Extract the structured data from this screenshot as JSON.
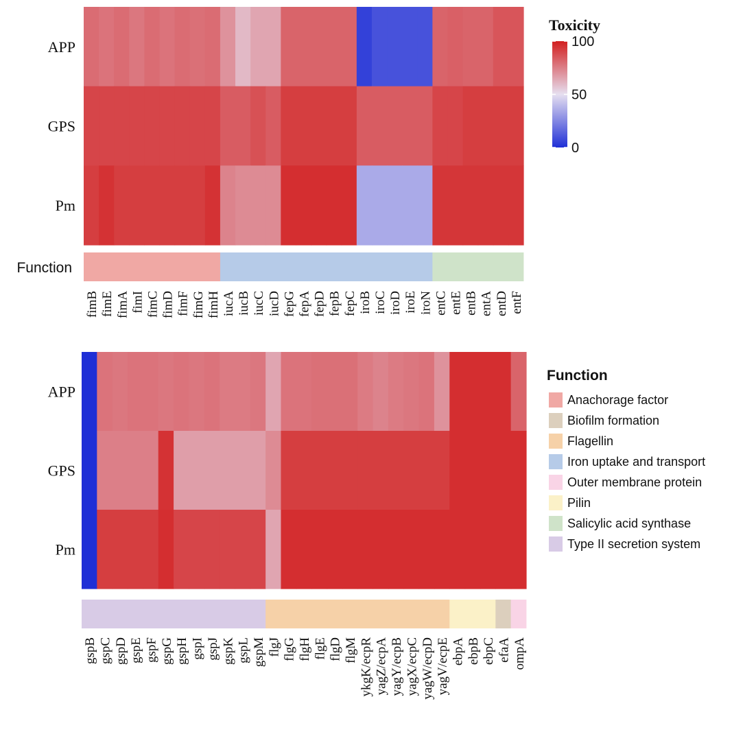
{
  "chart_data": [
    {
      "type": "heatmap",
      "name": "top-panel",
      "rows": [
        "APP",
        "GPS",
        "Pm"
      ],
      "columns": [
        "fimB",
        "fimE",
        "fimA",
        "fimI",
        "fimC",
        "fimD",
        "fimF",
        "fimG",
        "fimH",
        "iucA",
        "iucB",
        "iucC",
        "iucD",
        "fepG",
        "fepA",
        "fepD",
        "fepB",
        "fepC",
        "iroB",
        "iroC",
        "iroD",
        "iroE",
        "iroN",
        "entC",
        "entE",
        "entB",
        "entA",
        "entD",
        "entF"
      ],
      "values": [
        [
          80,
          78,
          80,
          77,
          80,
          78,
          80,
          79,
          80,
          70,
          60,
          65,
          65,
          82,
          82,
          82,
          82,
          82,
          5,
          10,
          10,
          10,
          10,
          82,
          83,
          82,
          82,
          86,
          86
        ],
        [
          90,
          90,
          90,
          90,
          90,
          90,
          90,
          90,
          90,
          84,
          84,
          87,
          84,
          92,
          92,
          92,
          92,
          92,
          84,
          84,
          84,
          84,
          84,
          90,
          90,
          92,
          92,
          92,
          92
        ],
        [
          92,
          95,
          92,
          92,
          92,
          92,
          92,
          92,
          95,
          74,
          72,
          72,
          72,
          96,
          96,
          96,
          96,
          96,
          35,
          35,
          35,
          35,
          35,
          94,
          94,
          94,
          94,
          94,
          94
        ]
      ],
      "row_group_label": "Function",
      "functions": [
        "Anachorage factor",
        "Anachorage factor",
        "Anachorage factor",
        "Anachorage factor",
        "Anachorage factor",
        "Anachorage factor",
        "Anachorage factor",
        "Anachorage factor",
        "Anachorage factor",
        "Iron uptake and transport",
        "Iron uptake and transport",
        "Iron uptake and transport",
        "Iron uptake and transport",
        "Iron uptake and transport",
        "Iron uptake and transport",
        "Iron uptake and transport",
        "Iron uptake and transport",
        "Iron uptake and transport",
        "Iron uptake and transport",
        "Iron uptake and transport",
        "Iron uptake and transport",
        "Iron uptake and transport",
        "Iron uptake and transport",
        "Salicylic acid synthase",
        "Salicylic acid synthase",
        "Salicylic acid synthase",
        "Salicylic acid synthase",
        "Salicylic acid synthase",
        "Salicylic acid synthase"
      ]
    },
    {
      "type": "heatmap",
      "name": "bottom-panel",
      "rows": [
        "APP",
        "GPS",
        "Pm"
      ],
      "columns": [
        "gspB",
        "gspC",
        "gspD",
        "gspE",
        "gspF",
        "gspG",
        "gspH",
        "gspI",
        "gspJ",
        "gspK",
        "gspL",
        "gspM",
        "flgJ",
        "flgG",
        "flgH",
        "flgE",
        "flgD",
        "flgM",
        "ykgK/ecpR",
        "yagZ/ecpA",
        "yagY/ecpB",
        "yagX/ecpC",
        "yagW/ecpD",
        "yagV/ecpE",
        "ebpA",
        "ebpB",
        "ebpC",
        "efaA",
        "ompA"
      ],
      "values": [
        [
          0,
          78,
          77,
          78,
          78,
          77,
          78,
          77,
          78,
          76,
          76,
          77,
          65,
          78,
          78,
          79,
          79,
          79,
          76,
          74,
          76,
          77,
          78,
          70,
          96,
          96,
          96,
          96,
          82
        ],
        [
          0,
          75,
          75,
          75,
          75,
          95,
          67,
          67,
          67,
          67,
          67,
          67,
          72,
          92,
          92,
          92,
          92,
          92,
          92,
          92,
          92,
          92,
          92,
          92,
          96,
          96,
          96,
          96,
          96
        ],
        [
          0,
          92,
          92,
          92,
          92,
          96,
          90,
          90,
          90,
          90,
          90,
          90,
          65,
          96,
          96,
          96,
          96,
          96,
          96,
          96,
          96,
          96,
          96,
          96,
          96,
          96,
          96,
          96,
          96
        ]
      ],
      "functions": [
        "Type II secretion system",
        "Type II secretion system",
        "Type II secretion system",
        "Type II secretion system",
        "Type II secretion system",
        "Type II secretion system",
        "Type II secretion system",
        "Type II secretion system",
        "Type II secretion system",
        "Type II secretion system",
        "Type II secretion system",
        "Type II secretion system",
        "Flagellin",
        "Flagellin",
        "Flagellin",
        "Flagellin",
        "Flagellin",
        "Flagellin",
        "Flagellin",
        "Flagellin",
        "Flagellin",
        "Flagellin",
        "Flagellin",
        "Flagellin",
        "Pilin",
        "Pilin",
        "Pilin",
        "Biofilm formation",
        "Outer membrane protein"
      ]
    }
  ],
  "color_legend": {
    "title": "Toxicity",
    "ticks": [
      100,
      50,
      0
    ],
    "range": [
      0,
      100
    ],
    "colors": {
      "low": "#1f2fd6",
      "mid": "#e6dff0",
      "high": "#d21f1f"
    }
  },
  "function_legend": {
    "title": "Function",
    "items": [
      {
        "label": "Anachorage factor",
        "color": "#f0a8a4"
      },
      {
        "label": "Biofilm formation",
        "color": "#dccfbd"
      },
      {
        "label": "Flagellin",
        "color": "#f6d1a8"
      },
      {
        "label": "Iron uptake and transport",
        "color": "#b6cbe8"
      },
      {
        "label": "Outer membrane protein",
        "color": "#f9d4e6"
      },
      {
        "label": "Pilin",
        "color": "#fbf1c8"
      },
      {
        "label": "Salicylic acid synthase",
        "color": "#cfe3c9"
      },
      {
        "label": "Type II secretion system",
        "color": "#d8cbe6"
      }
    ]
  }
}
